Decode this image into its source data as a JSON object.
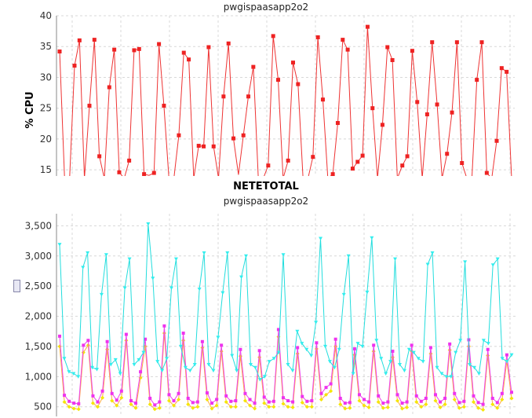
{
  "chart_data": [
    {
      "type": "line",
      "title": "",
      "subtitle": "pwgispaasapp2o2",
      "xlabel": "",
      "ylabel": "% CPU",
      "ylim": [
        14,
        40
      ],
      "yticks": [
        15,
        20,
        25,
        30,
        35,
        40
      ],
      "grid": true,
      "colors": {
        "series": "#ee3333",
        "grid": "#d8d8d8",
        "axis": "#888888"
      },
      "series": [
        {
          "values": [
            34.2,
            13.6,
            13.6,
            31.9,
            36.0,
            13.6,
            25.4,
            36.1,
            17.2,
            13.6,
            28.4,
            34.5,
            14.6,
            13.6,
            16.5,
            34.4,
            34.6,
            14.3,
            14.1,
            14.5,
            35.4,
            25.4,
            13.6,
            13.6,
            20.6,
            34.0,
            32.9,
            13.6,
            18.9,
            18.8,
            34.9,
            18.8,
            13.6,
            26.9,
            35.5,
            20.1,
            14.2,
            20.6,
            26.9,
            31.7,
            13.6,
            13.6,
            15.7,
            36.7,
            29.6,
            13.6,
            16.5,
            32.4,
            28.9,
            13.6,
            13.6,
            17.1,
            36.5,
            26.4,
            13.6,
            14.3,
            22.6,
            36.1,
            34.5,
            15.2,
            16.3,
            17.3,
            38.2,
            25.0,
            13.6,
            22.3,
            34.9,
            32.8,
            13.6,
            15.7,
            17.2,
            34.3,
            26.0,
            13.6,
            24.0,
            35.7,
            25.6,
            13.6,
            17.6,
            24.3,
            35.7,
            16.1,
            13.6,
            13.6,
            29.6,
            35.7,
            14.5,
            13.6,
            19.7,
            31.5,
            30.9,
            13.6
          ]
        }
      ]
    },
    {
      "type": "line",
      "title": "NETETOTAL",
      "subtitle": "pwgispaasapp2o2",
      "xlabel": "",
      "ylabel": "",
      "ylim": [
        340,
        3700
      ],
      "yticks": [
        500,
        1000,
        1500,
        2000,
        2500,
        3000,
        3500
      ],
      "ytick_labels": [
        "500",
        "1,000",
        "1,500",
        "2,000",
        "2,500",
        "3,000",
        "3,500"
      ],
      "grid": true,
      "colors": {
        "grid": "#d8d8d8",
        "axis": "#888888"
      },
      "series": [
        {
          "color": "#33eeee",
          "values": [
            3190,
            1300,
            1080,
            1050,
            1000,
            2810,
            3050,
            1150,
            1120,
            2360,
            3020,
            1200,
            1280,
            1050,
            2470,
            2950,
            1200,
            1280,
            1400,
            3530,
            2630,
            1250,
            1100,
            1300,
            2470,
            2950,
            1500,
            1150,
            1100,
            1200,
            2450,
            3050,
            1200,
            1100,
            1650,
            2390,
            3050,
            1350,
            1100,
            2650,
            3000,
            1200,
            1150,
            950,
            1000,
            1250,
            1300,
            1400,
            3020,
            1200,
            1100,
            1750,
            1550,
            1450,
            1350,
            1900,
            3290,
            1500,
            1250,
            1150,
            1450,
            2360,
            3000,
            1050,
            1550,
            1500,
            2400,
            3300,
            1600,
            1300,
            1050,
            1250,
            2950,
            1200,
            1100,
            1450,
            1400,
            1300,
            1250,
            2860,
            3050,
            1150,
            1050,
            1000,
            1000,
            1400,
            1600,
            2900,
            1200,
            1150,
            1050,
            1600,
            1550,
            2850,
            2950,
            1300,
            1250,
            1360
          ]
        },
        {
          "color": "#ee33ee",
          "values": [
            1670,
            690,
            590,
            560,
            550,
            1520,
            1600,
            680,
            580,
            760,
            1580,
            720,
            610,
            760,
            1700,
            600,
            560,
            1080,
            1620,
            640,
            530,
            580,
            1840,
            700,
            600,
            720,
            1720,
            640,
            570,
            580,
            1580,
            730,
            560,
            620,
            1520,
            680,
            590,
            600,
            1450,
            720,
            620,
            560,
            1430,
            660,
            580,
            590,
            1780,
            650,
            600,
            580,
            1480,
            670,
            590,
            600,
            1560,
            720,
            820,
            880,
            1620,
            640,
            560,
            570,
            1460,
            700,
            620,
            580,
            1520,
            680,
            560,
            580,
            1420,
            700,
            560,
            580,
            1520,
            680,
            590,
            640,
            1480,
            700,
            580,
            640,
            1540,
            720,
            570,
            590,
            1610,
            680,
            570,
            540,
            1450,
            640,
            570,
            720,
            1360,
            740
          ]
        },
        {
          "color": "#ffff33",
          "values": [
            1500,
            580,
            500,
            470,
            460,
            1400,
            1520,
            560,
            500,
            650,
            1450,
            600,
            520,
            650,
            1600,
            540,
            480,
            980,
            1500,
            540,
            460,
            480,
            1720,
            600,
            520,
            620,
            1600,
            540,
            480,
            500,
            1480,
            620,
            470,
            520,
            1420,
            580,
            500,
            500,
            1340,
            600,
            520,
            470,
            1320,
            560,
            500,
            500,
            1660,
            550,
            500,
            490,
            1380,
            570,
            500,
            500,
            1460,
            620,
            700,
            760,
            1500,
            540,
            470,
            480,
            1360,
            600,
            520,
            490,
            1420,
            580,
            480,
            490,
            1320,
            600,
            470,
            490,
            1420,
            580,
            500,
            540,
            1380,
            600,
            490,
            540,
            1440,
            620,
            480,
            500,
            1500,
            580,
            480,
            450,
            1350,
            540,
            480,
            620,
            1260,
            640
          ]
        }
      ]
    }
  ]
}
